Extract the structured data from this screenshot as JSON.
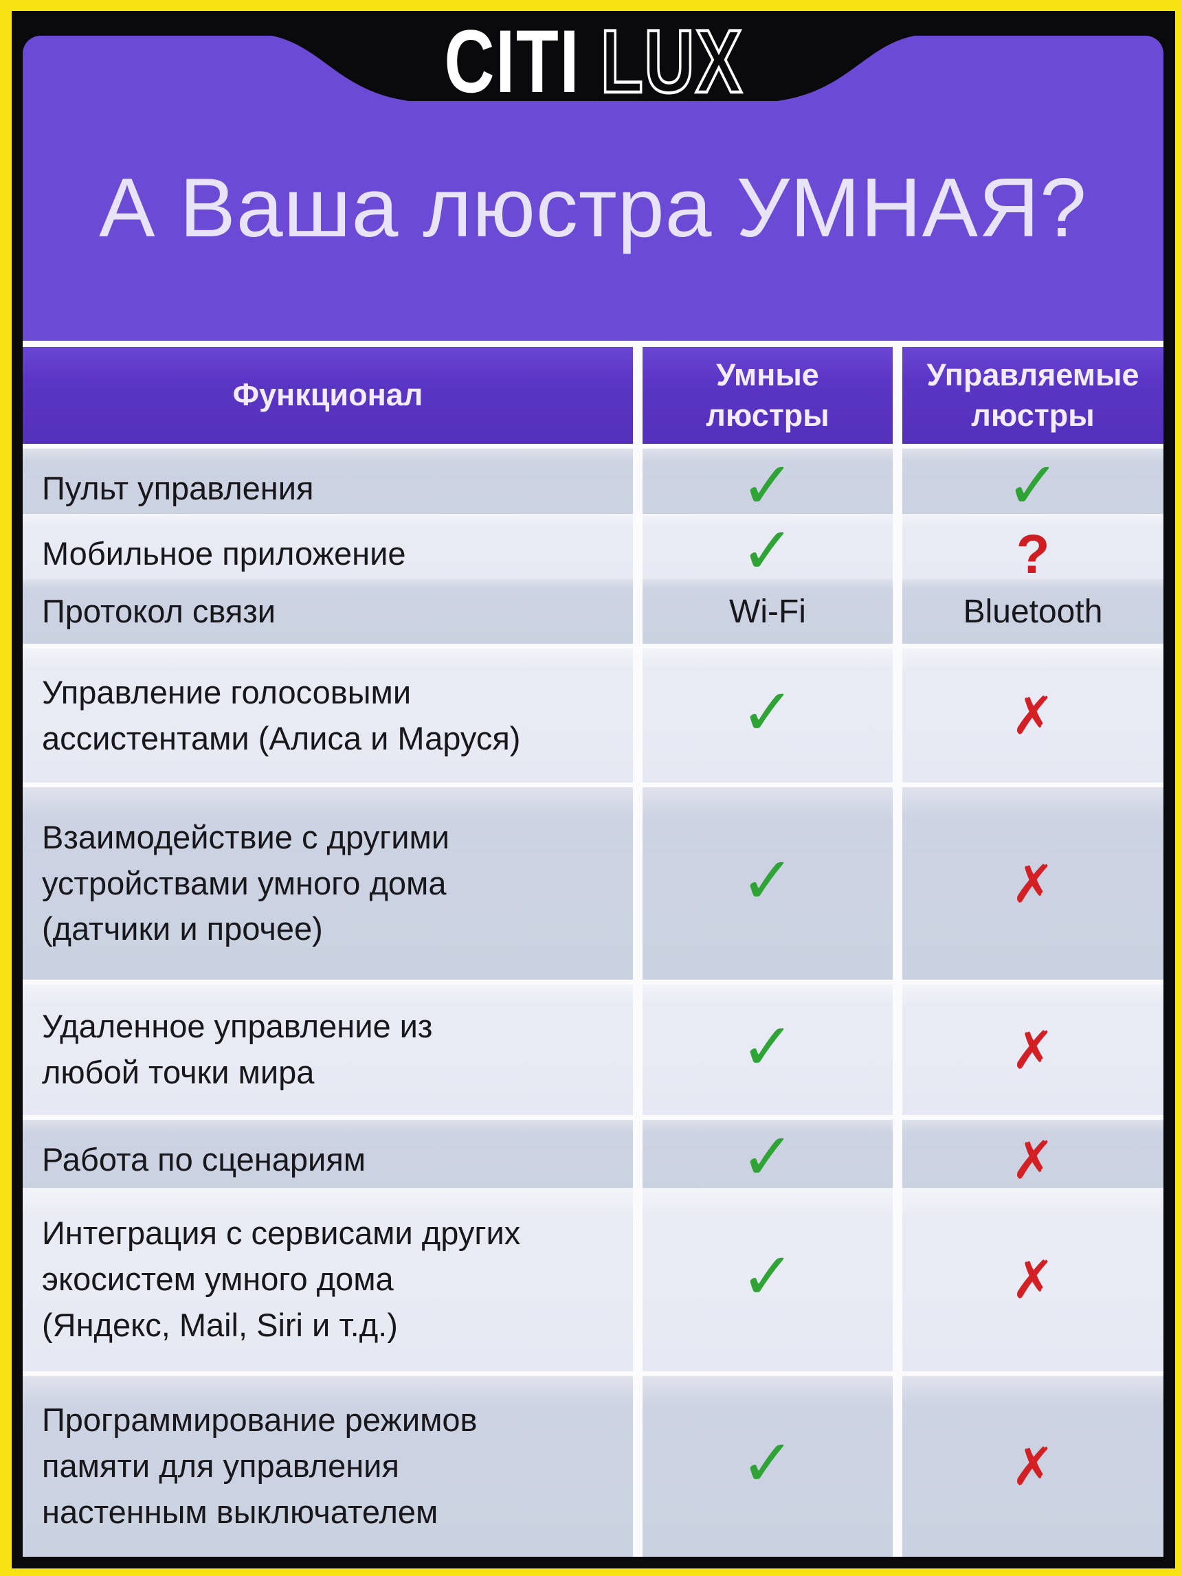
{
  "brand": {
    "logo_part_solid": "CITI",
    "logo_part_outline": "LUX"
  },
  "title": "А Ваша люстра УМНАЯ?",
  "table": {
    "headers": {
      "feature": "Функционал",
      "smart": "Умные\nлюстры",
      "controlled": "Управляемые\nлюстры"
    },
    "rows": [
      {
        "feature": "Пульт управления",
        "smart": "check",
        "controlled": "check"
      },
      {
        "feature": "Мобильное приложение",
        "smart": "check",
        "controlled": "question"
      },
      {
        "feature": "Протокол связи",
        "smart": "Wi-Fi",
        "controlled": "Bluetooth"
      },
      {
        "feature": "Управление голосовыми\nассистентами (Алиса и Маруся)",
        "smart": "check",
        "controlled": "cross"
      },
      {
        "feature": "Взаимодействие с другими\nустройствами умного дома\n(датчики и прочее)",
        "smart": "check",
        "controlled": "cross"
      },
      {
        "feature": "Удаленное управление из\nлюбой точки мира",
        "smart": "check",
        "controlled": "cross"
      },
      {
        "feature": "Работа по сценариям",
        "smart": "check",
        "controlled": "cross"
      },
      {
        "feature": "Интеграция с сервисами других\nэкосистем умного дома\n(Яндекс, Mail, Siri и т.д.)",
        "smart": "check",
        "controlled": "cross"
      },
      {
        "feature": "Программирование режимов\nпамяти для управления\nнастенным выключателем",
        "smart": "check",
        "controlled": "cross"
      }
    ]
  },
  "symbols": {
    "check": "✓",
    "cross": "✗",
    "question": "?"
  },
  "colors": {
    "accent_yellow": "#f8e312",
    "frame_black": "#0a0a0c",
    "purple_background": "#6b4ad6",
    "purple_header": "#5b36c6",
    "row_dark": "#cdd3e2",
    "row_light": "#e9ebf4",
    "green_check": "#2fa336",
    "red_mark": "#d32025",
    "title_text": "#e9e3f7",
    "label_text": "#17171c"
  }
}
